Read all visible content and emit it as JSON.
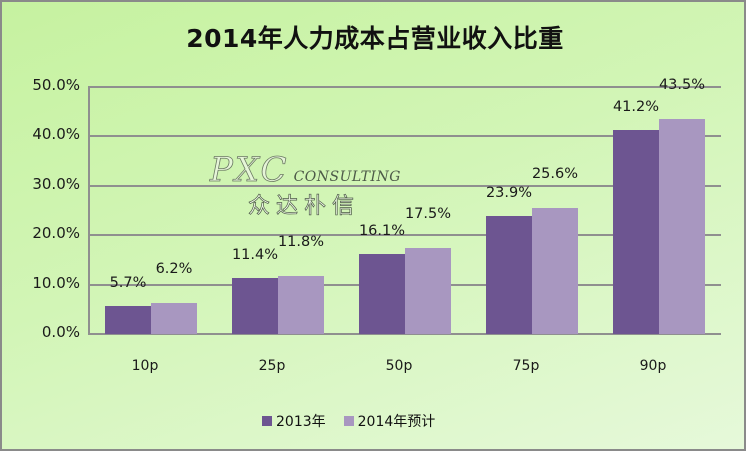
{
  "chart_data": {
    "type": "bar",
    "title": "2014年人力成本占营业收入比重",
    "xlabel": "",
    "ylabel": "",
    "categories": [
      "10p",
      "25p",
      "50p",
      "75p",
      "90p"
    ],
    "series": [
      {
        "name": "2013年",
        "values": [
          5.7,
          11.4,
          16.1,
          23.9,
          41.2
        ],
        "color": "#6d5591",
        "labels": [
          "5.7%",
          "11.4%",
          "16.1%",
          "23.9%",
          "41.2%"
        ]
      },
      {
        "name": "2014年预计",
        "values": [
          6.2,
          11.8,
          17.5,
          25.6,
          43.5
        ],
        "color": "#a897c0",
        "labels": [
          "6.2%",
          "11.8%",
          "17.5%",
          "25.6%",
          "43.5%"
        ]
      }
    ],
    "ylim": [
      0,
      50
    ],
    "yticks": [
      "0.0%",
      "10.0%",
      "20.0%",
      "30.0%",
      "40.0%",
      "50.0%"
    ],
    "grid": true,
    "legend_position": "bottom",
    "unit": "%"
  },
  "watermark": {
    "logo": "PXC",
    "subtitle": "CONSULTING",
    "chinese": "众达朴信"
  },
  "colors": {
    "background_start": "#c6f2a0",
    "background_end": "#e6f9da",
    "gridline": "#8f8f8f",
    "border": "#8a8a8a"
  }
}
